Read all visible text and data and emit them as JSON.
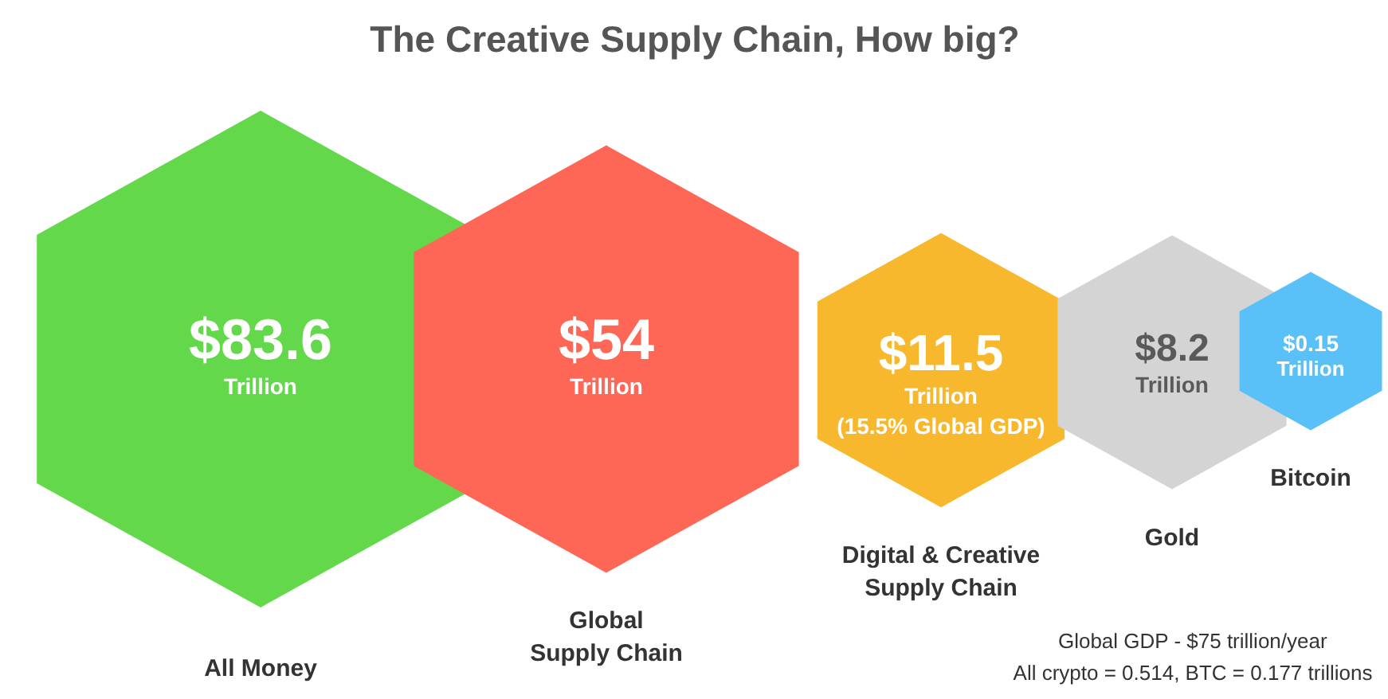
{
  "chart_data": {
    "type": "other",
    "title": "The Creative Supply Chain, How big?",
    "categories": [
      "All Money",
      "Global\nSupply Chain",
      "Digital & Creative\nSupply Chain",
      "Gold",
      "Bitcoin"
    ],
    "values": [
      83.6,
      54,
      11.5,
      8.2,
      0.15
    ],
    "value_labels": [
      "$83.6\nTrillion",
      "$54\nTrillion",
      "$11.5\nTrillion\n(15.5% Global GDP)",
      "$8.2\nTrillion",
      "$0.15\nTrillion"
    ],
    "colors": [
      "#62d84a",
      "#fe6655",
      "#f7b82e",
      "#d4d4d4",
      "#5ac0f8"
    ],
    "annotations": [
      "Global GDP - $75 trillion/year",
      "All crypto = 0.514, BTC = 0.177 trillions"
    ]
  }
}
